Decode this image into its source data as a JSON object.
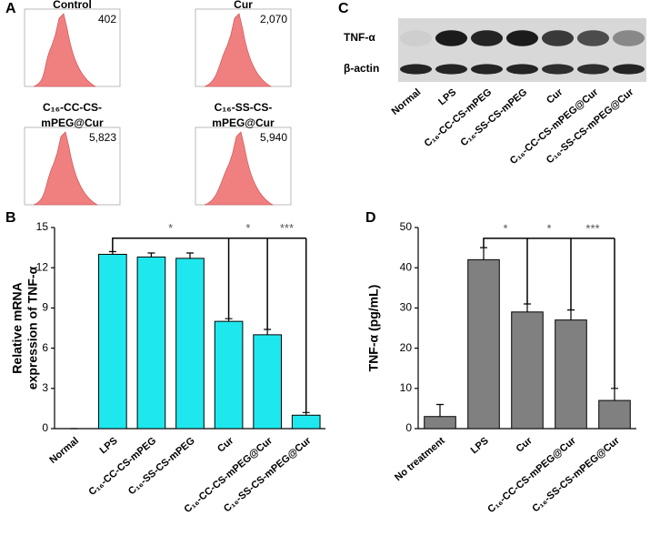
{
  "chart_data": [
    {
      "type": "flow",
      "panel_label": "A",
      "titles": [
        [
          "Control"
        ],
        [
          "Cur"
        ],
        [
          "C₁₆-CC-CS-",
          "mPEG@Cur"
        ],
        [
          "C₁₆-SS-CS-",
          "mPEG@Cur"
        ]
      ],
      "values": [
        402,
        2070,
        5823,
        5940
      ],
      "value_labels": [
        "402",
        "2,070",
        "5,823",
        "5,940"
      ],
      "color": "#f08080"
    },
    {
      "type": "blot",
      "panel_label": "C",
      "categories": [
        "Normal",
        "LPS",
        "C₁₆-CC-CS-mPEG",
        "C₁₆-SS-CS-mPEG",
        "Cur",
        "C₁₆-CC-CS-mPEG@Cur",
        "C₁₆-SS-CS-mPEG@Cur"
      ],
      "series": [
        {
          "name": "TNF-α",
          "values": [
            0.05,
            0.95,
            0.9,
            0.95,
            0.8,
            0.7,
            0.4
          ]
        },
        {
          "name": "β-actin",
          "values": [
            0.9,
            0.9,
            0.9,
            0.9,
            0.85,
            0.85,
            0.9
          ]
        }
      ]
    },
    {
      "type": "bar",
      "panel_label": "B",
      "ylabel": [
        "Relative mRNA",
        "expression of TNF-α"
      ],
      "categories": [
        "Normal",
        "LPS",
        "C₁₆-CC-CS-mPEG",
        "C₁₆-SS-CS-mPEG",
        "Cur",
        "C₁₆-CC-CS-mPEG@Cur",
        "C₁₆-SS-CS-mPEG@Cur"
      ],
      "values": [
        0,
        13,
        12.8,
        12.7,
        8,
        7,
        1
      ],
      "errors": [
        0,
        0.2,
        0.3,
        0.4,
        0.2,
        0.4,
        0.2
      ],
      "color": "#1ee8ee",
      "ylim": [
        0,
        15
      ],
      "yticks": [
        0,
        3,
        6,
        9,
        12,
        15
      ],
      "significance": {
        "from": 1,
        "to": [
          4,
          5,
          6
        ],
        "y": 14.2,
        "labels": [
          "*",
          "*",
          "***"
        ]
      }
    },
    {
      "type": "bar",
      "panel_label": "D",
      "ylabel": [
        "TNF-α (pg/mL)"
      ],
      "categories": [
        "No treatment",
        "LPS",
        "Cur",
        "C₁₆-CC-CS-mPEG@Cur",
        "C₁₆-SS-CS-mPEG@Cur"
      ],
      "values": [
        3,
        42,
        29,
        27,
        7
      ],
      "errors": [
        3,
        3,
        2,
        2.5,
        3
      ],
      "color": "#808080",
      "ylim": [
        0,
        50
      ],
      "yticks": [
        0,
        10,
        20,
        30,
        40,
        50
      ],
      "significance": {
        "from": 1,
        "to": [
          2,
          3,
          4
        ],
        "y": 47.3,
        "labels": [
          "*",
          "*",
          "***"
        ]
      }
    }
  ]
}
